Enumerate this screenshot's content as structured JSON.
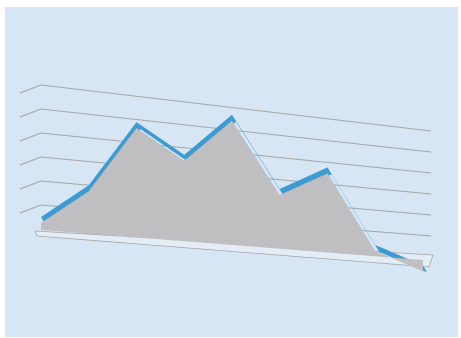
{
  "chart_data": {
    "type": "area",
    "style": "3d-perspective",
    "title": "",
    "xlabel": "",
    "ylabel": "",
    "x": [
      1,
      2,
      3,
      4,
      5,
      6,
      7,
      8,
      9
    ],
    "series": [
      {
        "values": [
          0.5,
          2.0,
          4.9,
          3.7,
          5.7,
          2.6,
          3.8,
          0.4,
          -0.4
        ]
      }
    ],
    "ylim": [
      0,
      6
    ],
    "grid": true,
    "legend": "none",
    "colors": {
      "background": "#d6e6f4",
      "area_face": "#bfbfc1",
      "area_top_edge": "#3d9bd2",
      "gridline": "#a6a6a6",
      "floor": "#e4edf6"
    }
  }
}
